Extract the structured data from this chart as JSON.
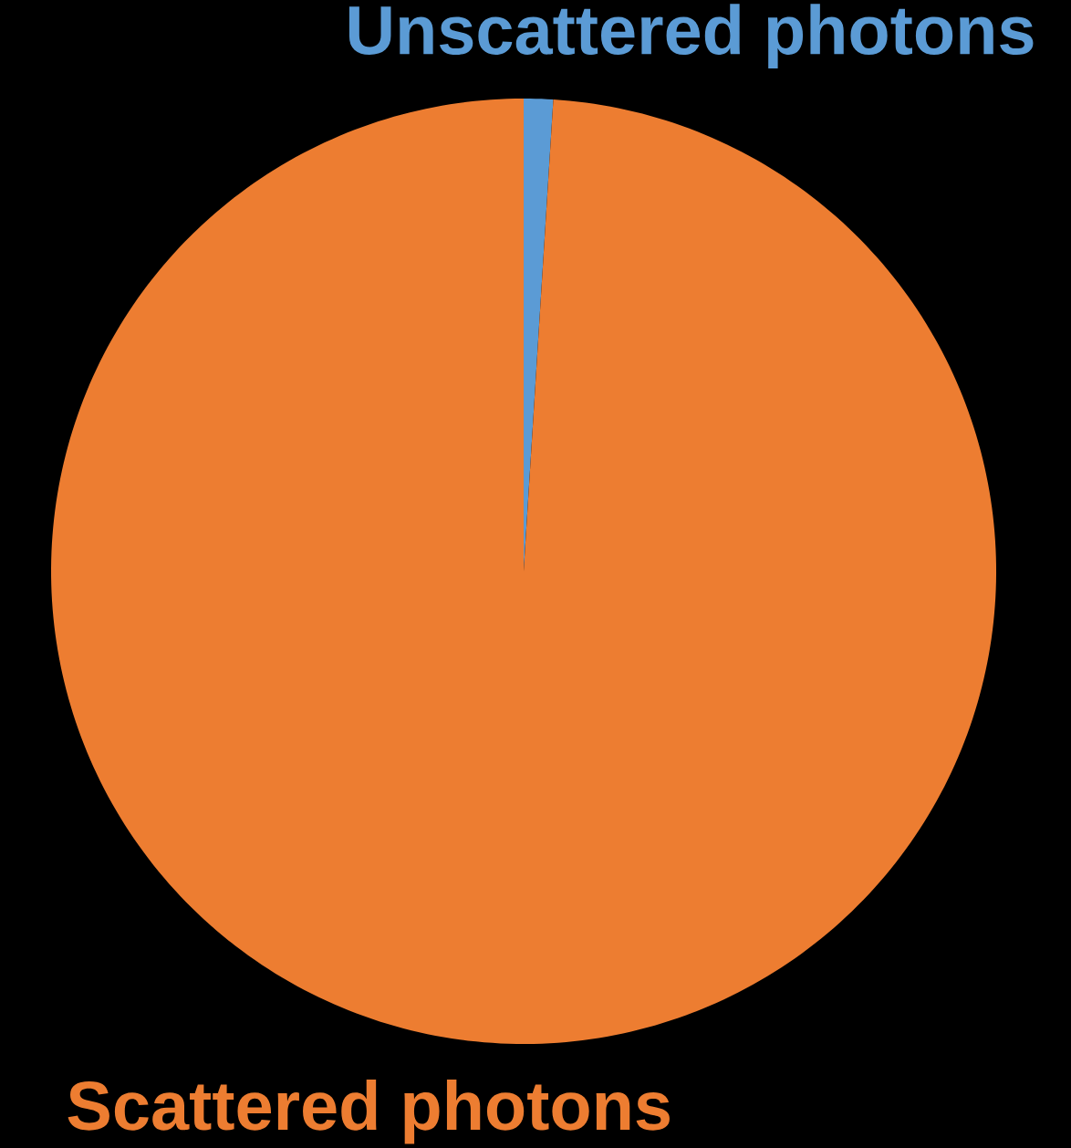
{
  "chart_data": {
    "type": "pie",
    "categories": [
      "Unscattered photons",
      "Scattered photons"
    ],
    "values": [
      1,
      99
    ],
    "colors": [
      "#5b9bd5",
      "#ed7d31"
    ]
  }
}
